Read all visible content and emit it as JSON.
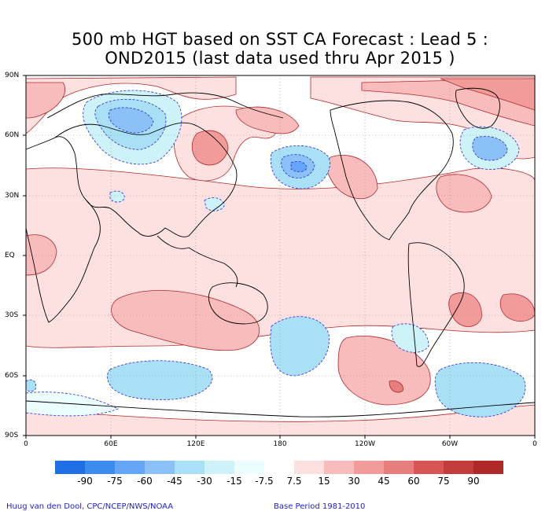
{
  "title": {
    "line1": "500 mb HGT based on SST CA Forecast : Lead 5 :",
    "line2": "OND2015 (last data used thru Apr 2015 )"
  },
  "map": {
    "lat_labels": [
      "90N",
      "60N",
      "30N",
      "EQ",
      "30S",
      "60S",
      "90S"
    ],
    "lon_labels": [
      "0",
      "60E",
      "120E",
      "180",
      "120W",
      "60W",
      "0"
    ],
    "grid_lines": "dotted"
  },
  "colorbar": {
    "labels": [
      "-90",
      "-75",
      "-60",
      "-45",
      "-30",
      "-15",
      "-7.5",
      "7.5",
      "15",
      "30",
      "45",
      "60",
      "75",
      "90"
    ],
    "colors": [
      "#1e6fe6",
      "#3c8cf0",
      "#64a6f5",
      "#8cc1f7",
      "#a9e0f6",
      "#cdf3f8",
      "#ecfdfd",
      "#ffffff",
      "#fde1e1",
      "#f8bcbc",
      "#f19b9b",
      "#e77e7e",
      "#d85555",
      "#c33d3d",
      "#b02828"
    ]
  },
  "footer": {
    "left": "Huug van den Dool, CPC/NCEP/NWS/NOAA",
    "right": "Base Period 1981-2010"
  }
}
